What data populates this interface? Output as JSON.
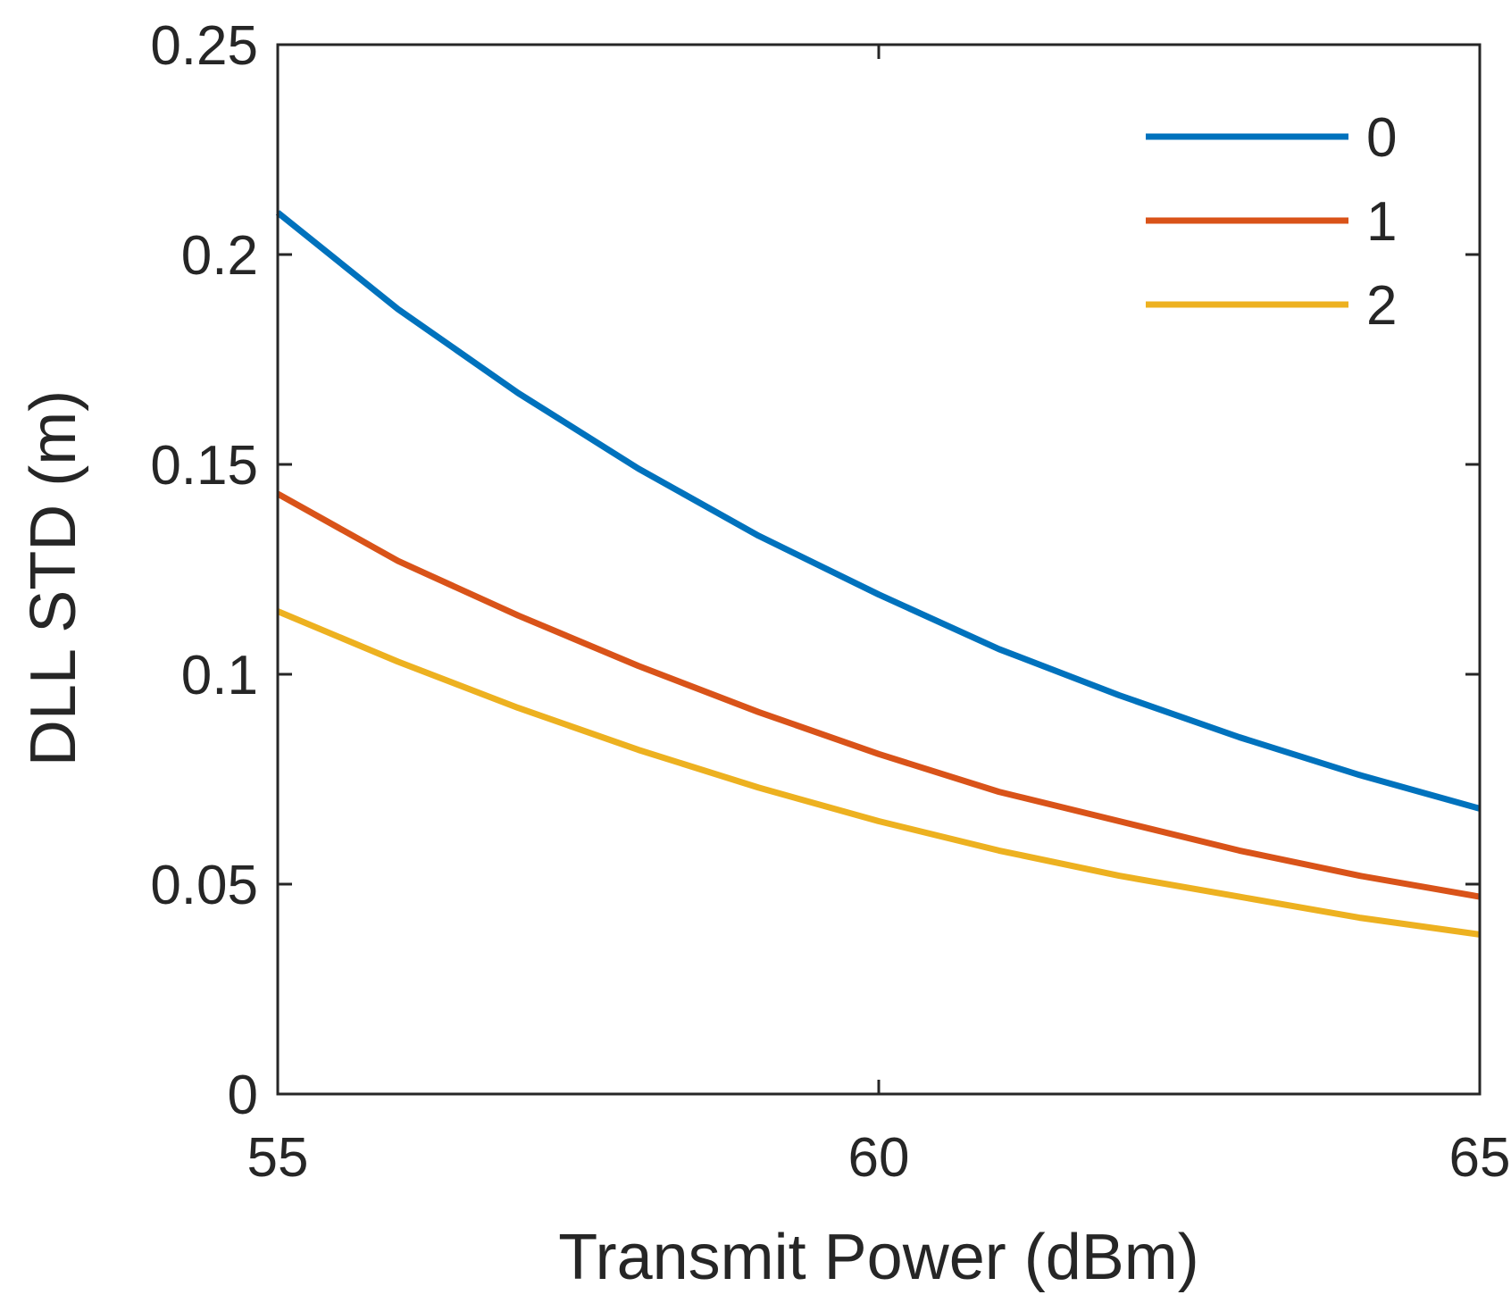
{
  "chart_data": {
    "type": "line",
    "title": "",
    "xlabel": "Transmit Power (dBm)",
    "ylabel": "DLL STD (m)",
    "xlim": [
      55,
      65
    ],
    "ylim": [
      0,
      0.25
    ],
    "xticks": [
      55,
      60,
      65
    ],
    "xtick_labels": [
      "55",
      "60",
      "65"
    ],
    "yticks": [
      0,
      0.05,
      0.1,
      0.15,
      0.2,
      0.25
    ],
    "ytick_labels": [
      "0",
      "0.05",
      "0.1",
      "0.15",
      "0.2",
      "0.25"
    ],
    "grid": false,
    "legend_position": "top-right",
    "x": [
      55,
      56,
      57,
      58,
      59,
      60,
      61,
      62,
      63,
      64,
      65
    ],
    "series": [
      {
        "name": "0",
        "color": "#0072BD",
        "values": [
          0.21,
          0.187,
          0.167,
          0.149,
          0.133,
          0.119,
          0.106,
          0.095,
          0.085,
          0.076,
          0.068
        ]
      },
      {
        "name": "1",
        "color": "#D95319",
        "values": [
          0.143,
          0.127,
          0.114,
          0.102,
          0.091,
          0.081,
          0.072,
          0.065,
          0.058,
          0.052,
          0.047
        ]
      },
      {
        "name": "2",
        "color": "#EDB120",
        "values": [
          0.115,
          0.103,
          0.092,
          0.082,
          0.073,
          0.065,
          0.058,
          0.052,
          0.047,
          0.042,
          0.038
        ]
      }
    ]
  }
}
